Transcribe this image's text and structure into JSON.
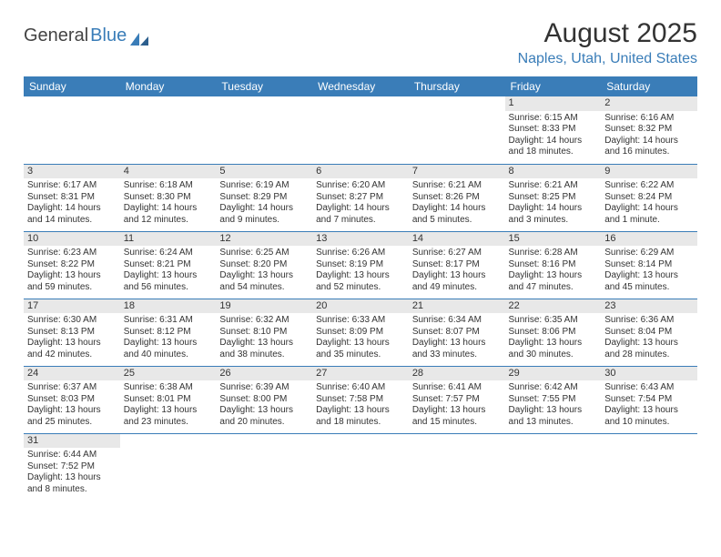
{
  "logo": {
    "general": "General",
    "blue": "Blue"
  },
  "title": "August 2025",
  "location": "Naples, Utah, United States",
  "colors": {
    "header_bg": "#3a7db8",
    "header_text": "#ffffff",
    "accent": "#3a7db8",
    "daynum_bg": "#e8e8e8",
    "text": "#333333",
    "background": "#ffffff"
  },
  "typography": {
    "title_fontsize": 30,
    "location_fontsize": 16,
    "dayheader_fontsize": 12,
    "daynum_fontsize": 11,
    "cell_fontsize": 10
  },
  "day_headers": [
    "Sunday",
    "Monday",
    "Tuesday",
    "Wednesday",
    "Thursday",
    "Friday",
    "Saturday"
  ],
  "weeks": [
    [
      null,
      null,
      null,
      null,
      null,
      {
        "n": "1",
        "sunrise": "Sunrise: 6:15 AM",
        "sunset": "Sunset: 8:33 PM",
        "day1": "Daylight: 14 hours",
        "day2": "and 18 minutes."
      },
      {
        "n": "2",
        "sunrise": "Sunrise: 6:16 AM",
        "sunset": "Sunset: 8:32 PM",
        "day1": "Daylight: 14 hours",
        "day2": "and 16 minutes."
      }
    ],
    [
      {
        "n": "3",
        "sunrise": "Sunrise: 6:17 AM",
        "sunset": "Sunset: 8:31 PM",
        "day1": "Daylight: 14 hours",
        "day2": "and 14 minutes."
      },
      {
        "n": "4",
        "sunrise": "Sunrise: 6:18 AM",
        "sunset": "Sunset: 8:30 PM",
        "day1": "Daylight: 14 hours",
        "day2": "and 12 minutes."
      },
      {
        "n": "5",
        "sunrise": "Sunrise: 6:19 AM",
        "sunset": "Sunset: 8:29 PM",
        "day1": "Daylight: 14 hours",
        "day2": "and 9 minutes."
      },
      {
        "n": "6",
        "sunrise": "Sunrise: 6:20 AM",
        "sunset": "Sunset: 8:27 PM",
        "day1": "Daylight: 14 hours",
        "day2": "and 7 minutes."
      },
      {
        "n": "7",
        "sunrise": "Sunrise: 6:21 AM",
        "sunset": "Sunset: 8:26 PM",
        "day1": "Daylight: 14 hours",
        "day2": "and 5 minutes."
      },
      {
        "n": "8",
        "sunrise": "Sunrise: 6:21 AM",
        "sunset": "Sunset: 8:25 PM",
        "day1": "Daylight: 14 hours",
        "day2": "and 3 minutes."
      },
      {
        "n": "9",
        "sunrise": "Sunrise: 6:22 AM",
        "sunset": "Sunset: 8:24 PM",
        "day1": "Daylight: 14 hours",
        "day2": "and 1 minute."
      }
    ],
    [
      {
        "n": "10",
        "sunrise": "Sunrise: 6:23 AM",
        "sunset": "Sunset: 8:22 PM",
        "day1": "Daylight: 13 hours",
        "day2": "and 59 minutes."
      },
      {
        "n": "11",
        "sunrise": "Sunrise: 6:24 AM",
        "sunset": "Sunset: 8:21 PM",
        "day1": "Daylight: 13 hours",
        "day2": "and 56 minutes."
      },
      {
        "n": "12",
        "sunrise": "Sunrise: 6:25 AM",
        "sunset": "Sunset: 8:20 PM",
        "day1": "Daylight: 13 hours",
        "day2": "and 54 minutes."
      },
      {
        "n": "13",
        "sunrise": "Sunrise: 6:26 AM",
        "sunset": "Sunset: 8:19 PM",
        "day1": "Daylight: 13 hours",
        "day2": "and 52 minutes."
      },
      {
        "n": "14",
        "sunrise": "Sunrise: 6:27 AM",
        "sunset": "Sunset: 8:17 PM",
        "day1": "Daylight: 13 hours",
        "day2": "and 49 minutes."
      },
      {
        "n": "15",
        "sunrise": "Sunrise: 6:28 AM",
        "sunset": "Sunset: 8:16 PM",
        "day1": "Daylight: 13 hours",
        "day2": "and 47 minutes."
      },
      {
        "n": "16",
        "sunrise": "Sunrise: 6:29 AM",
        "sunset": "Sunset: 8:14 PM",
        "day1": "Daylight: 13 hours",
        "day2": "and 45 minutes."
      }
    ],
    [
      {
        "n": "17",
        "sunrise": "Sunrise: 6:30 AM",
        "sunset": "Sunset: 8:13 PM",
        "day1": "Daylight: 13 hours",
        "day2": "and 42 minutes."
      },
      {
        "n": "18",
        "sunrise": "Sunrise: 6:31 AM",
        "sunset": "Sunset: 8:12 PM",
        "day1": "Daylight: 13 hours",
        "day2": "and 40 minutes."
      },
      {
        "n": "19",
        "sunrise": "Sunrise: 6:32 AM",
        "sunset": "Sunset: 8:10 PM",
        "day1": "Daylight: 13 hours",
        "day2": "and 38 minutes."
      },
      {
        "n": "20",
        "sunrise": "Sunrise: 6:33 AM",
        "sunset": "Sunset: 8:09 PM",
        "day1": "Daylight: 13 hours",
        "day2": "and 35 minutes."
      },
      {
        "n": "21",
        "sunrise": "Sunrise: 6:34 AM",
        "sunset": "Sunset: 8:07 PM",
        "day1": "Daylight: 13 hours",
        "day2": "and 33 minutes."
      },
      {
        "n": "22",
        "sunrise": "Sunrise: 6:35 AM",
        "sunset": "Sunset: 8:06 PM",
        "day1": "Daylight: 13 hours",
        "day2": "and 30 minutes."
      },
      {
        "n": "23",
        "sunrise": "Sunrise: 6:36 AM",
        "sunset": "Sunset: 8:04 PM",
        "day1": "Daylight: 13 hours",
        "day2": "and 28 minutes."
      }
    ],
    [
      {
        "n": "24",
        "sunrise": "Sunrise: 6:37 AM",
        "sunset": "Sunset: 8:03 PM",
        "day1": "Daylight: 13 hours",
        "day2": "and 25 minutes."
      },
      {
        "n": "25",
        "sunrise": "Sunrise: 6:38 AM",
        "sunset": "Sunset: 8:01 PM",
        "day1": "Daylight: 13 hours",
        "day2": "and 23 minutes."
      },
      {
        "n": "26",
        "sunrise": "Sunrise: 6:39 AM",
        "sunset": "Sunset: 8:00 PM",
        "day1": "Daylight: 13 hours",
        "day2": "and 20 minutes."
      },
      {
        "n": "27",
        "sunrise": "Sunrise: 6:40 AM",
        "sunset": "Sunset: 7:58 PM",
        "day1": "Daylight: 13 hours",
        "day2": "and 18 minutes."
      },
      {
        "n": "28",
        "sunrise": "Sunrise: 6:41 AM",
        "sunset": "Sunset: 7:57 PM",
        "day1": "Daylight: 13 hours",
        "day2": "and 15 minutes."
      },
      {
        "n": "29",
        "sunrise": "Sunrise: 6:42 AM",
        "sunset": "Sunset: 7:55 PM",
        "day1": "Daylight: 13 hours",
        "day2": "and 13 minutes."
      },
      {
        "n": "30",
        "sunrise": "Sunrise: 6:43 AM",
        "sunset": "Sunset: 7:54 PM",
        "day1": "Daylight: 13 hours",
        "day2": "and 10 minutes."
      }
    ],
    [
      {
        "n": "31",
        "sunrise": "Sunrise: 6:44 AM",
        "sunset": "Sunset: 7:52 PM",
        "day1": "Daylight: 13 hours",
        "day2": "and 8 minutes."
      },
      null,
      null,
      null,
      null,
      null,
      null
    ]
  ]
}
